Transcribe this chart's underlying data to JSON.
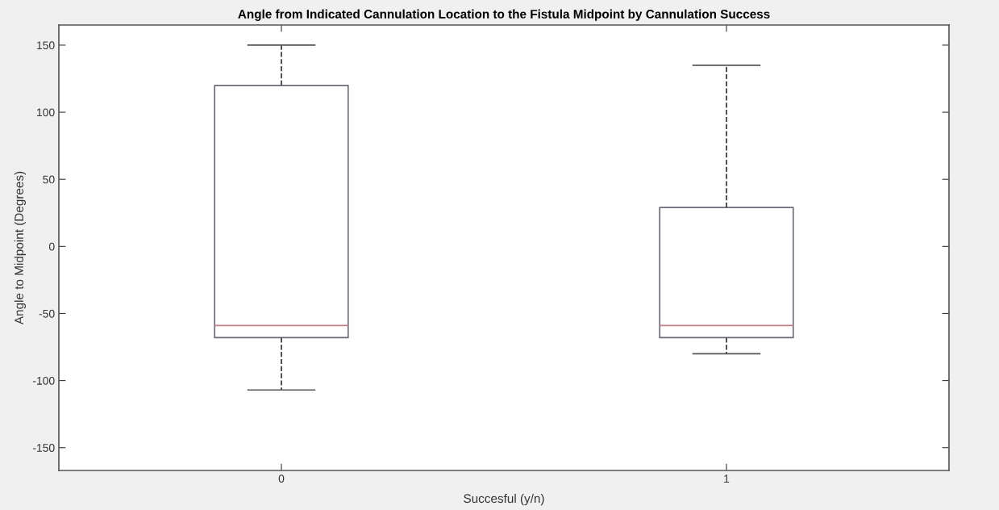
{
  "chart_data": {
    "type": "box",
    "title": "Angle from Indicated Cannulation Location to the Fistula Midpoint by Cannulation Success",
    "xlabel": "Succesful (y/n)",
    "ylabel": "Angle to Midpoint (Degrees)",
    "categories": [
      "0",
      "1"
    ],
    "boxes": [
      {
        "low": -107,
        "q1": -68,
        "median": -59,
        "q3": 120,
        "high": 150
      },
      {
        "low": -80,
        "q1": -68,
        "median": -59,
        "q3": 29,
        "high": 135
      }
    ],
    "color": "#6b6b7a",
    "ylim": [
      -167,
      165
    ],
    "yticks": [
      -150,
      -100,
      -50,
      0,
      50,
      100,
      150
    ],
    "grid": false
  }
}
